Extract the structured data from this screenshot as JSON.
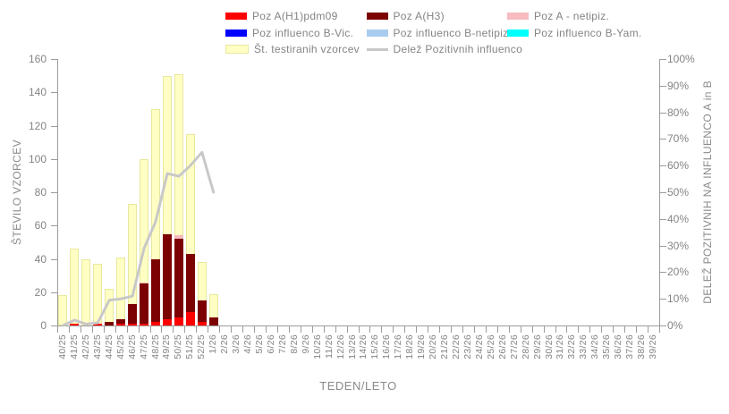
{
  "legend": {
    "items": [
      {
        "label": "Poz A(H1)pdm09",
        "swatch": "rect",
        "color": "#ff0000"
      },
      {
        "label": "Poz A(H3)",
        "swatch": "rect",
        "color": "#7c0102"
      },
      {
        "label": "Poz A - netipiz.",
        "swatch": "rect",
        "color": "#f7bbc0"
      },
      {
        "label": "Poz influenco B-Vic.",
        "swatch": "rect",
        "color": "#0000ff"
      },
      {
        "label": "Poz influenco B-netipiz.",
        "swatch": "rect",
        "color": "#a9ccee"
      },
      {
        "label": "Poz influenco B-Yam.",
        "swatch": "rect",
        "color": "#00ffff"
      },
      {
        "label": "Št. testiranih vzorcev",
        "swatch": "rect",
        "color": "#ffffc4",
        "border": "#e8e89e"
      },
      {
        "label": "Delež Pozitivnih influenco",
        "swatch": "line",
        "color": "#c8c8c8"
      }
    ]
  },
  "axes": {
    "x_label": "TEDEN/LETO",
    "y_left_label": "ŠTEVILO VZORCEV",
    "y_right_label": "DELEŽ POZITIVNIH  NA INFLUENCO  A in B",
    "y_left_ticks": [
      "0",
      "20",
      "40",
      "60",
      "80",
      "100",
      "120",
      "140",
      "160"
    ],
    "y_right_ticks": [
      "0%",
      "10%",
      "20%",
      "30%",
      "40%",
      "50%",
      "60%",
      "70%",
      "80%",
      "90%",
      "100%"
    ]
  },
  "chart_data": {
    "type": "bar",
    "title": "",
    "y_left": {
      "min": 0,
      "max": 160,
      "step": 20
    },
    "y_right": {
      "min": 0,
      "max": 100,
      "step": 10
    },
    "grid": false,
    "legend_position": "top",
    "categories": [
      "40/25",
      "41/25",
      "42/25",
      "43/25",
      "44/25",
      "45/25",
      "46/25",
      "47/25",
      "48/25",
      "49/25",
      "50/25",
      "51/25",
      "52/25",
      "1/26",
      "2/26",
      "3/26",
      "4/26",
      "5/26",
      "6/26",
      "7/26",
      "8/26",
      "9/26",
      "10/26",
      "11/26",
      "12/26",
      "13/26",
      "14/26",
      "15/26",
      "16/26",
      "17/26",
      "18/26",
      "19/26",
      "20/26",
      "21/26",
      "22/26",
      "23/26",
      "24/26",
      "25/26",
      "26/26",
      "27/26",
      "28/26",
      "29/26",
      "30/26",
      "31/26",
      "32/26",
      "33/26",
      "34/26",
      "35/26",
      "36/26",
      "37/26",
      "38/26",
      "39/26"
    ],
    "series": [
      {
        "name": "Št. testiranih vzorcev",
        "role": "background",
        "color": "#ffffc4",
        "border": "#e8e89e",
        "values": [
          18,
          46,
          40,
          37,
          22,
          41,
          73,
          100,
          130,
          150,
          151,
          115,
          38,
          19,
          0,
          0,
          0,
          0,
          0,
          0,
          0,
          0,
          0,
          0,
          0,
          0,
          0,
          0,
          0,
          0,
          0,
          0,
          0,
          0,
          0,
          0,
          0,
          0,
          0,
          0,
          0,
          0,
          0,
          0,
          0,
          0,
          0,
          0,
          0,
          0,
          0,
          0
        ]
      },
      {
        "name": "Poz A(H1)pdm09",
        "role": "stack",
        "color": "#ff0000",
        "values": [
          0,
          1,
          0,
          1,
          0,
          1,
          1,
          1,
          2,
          4,
          5,
          8,
          2,
          0,
          0,
          0,
          0,
          0,
          0,
          0,
          0,
          0,
          0,
          0,
          0,
          0,
          0,
          0,
          0,
          0,
          0,
          0,
          0,
          0,
          0,
          0,
          0,
          0,
          0,
          0,
          0,
          0,
          0,
          0,
          0,
          0,
          0,
          0,
          0,
          0,
          0,
          0
        ]
      },
      {
        "name": "Poz A(H3)",
        "role": "stack",
        "color": "#7c0102",
        "values": [
          0,
          0,
          0,
          0,
          2,
          3,
          12,
          24,
          38,
          51,
          47,
          35,
          13,
          5,
          0,
          0,
          0,
          0,
          0,
          0,
          0,
          0,
          0,
          0,
          0,
          0,
          0,
          0,
          0,
          0,
          0,
          0,
          0,
          0,
          0,
          0,
          0,
          0,
          0,
          0,
          0,
          0,
          0,
          0,
          0,
          0,
          0,
          0,
          0,
          0,
          0,
          0
        ]
      },
      {
        "name": "Poz A - netipiz.",
        "role": "stack",
        "color": "#f7bbc0",
        "values": [
          0,
          0,
          0,
          0,
          0,
          0,
          0,
          1,
          0,
          0,
          2,
          0,
          0,
          0,
          0,
          0,
          0,
          0,
          0,
          0,
          0,
          0,
          0,
          0,
          0,
          0,
          0,
          0,
          0,
          0,
          0,
          0,
          0,
          0,
          0,
          0,
          0,
          0,
          0,
          0,
          0,
          0,
          0,
          0,
          0,
          0,
          0,
          0,
          0,
          0,
          0,
          0
        ]
      },
      {
        "name": "Poz influenco B-Vic.",
        "role": "stack",
        "color": "#0000ff",
        "values": [
          0,
          0,
          0,
          0,
          0,
          0,
          0,
          0,
          0,
          0,
          0,
          0,
          0,
          0,
          0,
          0,
          0,
          0,
          0,
          0,
          0,
          0,
          0,
          0,
          0,
          0,
          0,
          0,
          0,
          0,
          0,
          0,
          0,
          0,
          0,
          0,
          0,
          0,
          0,
          0,
          0,
          0,
          0,
          0,
          0,
          0,
          0,
          0,
          0,
          0,
          0,
          0
        ]
      },
      {
        "name": "Poz influenco B-netipiz.",
        "role": "stack",
        "color": "#a9ccee",
        "values": [
          0,
          0,
          0,
          0,
          0,
          0,
          0,
          0,
          0,
          0,
          0,
          0,
          0,
          0,
          0,
          0,
          0,
          0,
          0,
          0,
          0,
          0,
          0,
          0,
          0,
          0,
          0,
          0,
          0,
          0,
          0,
          0,
          0,
          0,
          0,
          0,
          0,
          0,
          0,
          0,
          0,
          0,
          0,
          0,
          0,
          0,
          0,
          0,
          0,
          0,
          0,
          0
        ]
      },
      {
        "name": "Poz influenco B-Yam.",
        "role": "stack",
        "color": "#00ffff",
        "values": [
          0,
          0,
          0,
          0,
          0,
          0,
          0,
          0,
          0,
          0,
          0,
          0,
          0,
          0,
          0,
          0,
          0,
          0,
          0,
          0,
          0,
          0,
          0,
          0,
          0,
          0,
          0,
          0,
          0,
          0,
          0,
          0,
          0,
          0,
          0,
          0,
          0,
          0,
          0,
          0,
          0,
          0,
          0,
          0,
          0,
          0,
          0,
          0,
          0,
          0,
          0,
          0
        ]
      }
    ],
    "line_series": {
      "name": "Delež Pozitivnih influenco",
      "color": "#c8c8c8",
      "axis": "right",
      "values_pct": [
        0,
        2,
        0.5,
        1,
        9.5,
        10,
        11,
        29,
        39,
        57,
        56,
        60,
        65,
        50,
        null,
        null,
        null,
        null,
        null,
        null,
        null,
        null,
        null,
        null,
        null,
        null,
        null,
        null,
        null,
        null,
        null,
        null,
        null,
        null,
        null,
        null,
        null,
        null,
        null,
        null,
        null,
        null,
        null,
        null,
        null,
        null,
        null,
        null,
        null,
        null,
        null,
        null
      ]
    }
  }
}
